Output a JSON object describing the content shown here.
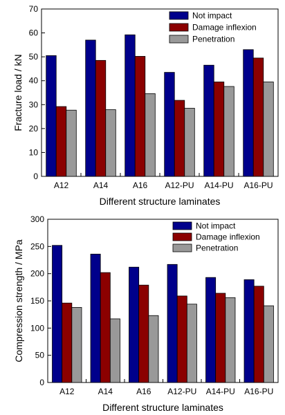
{
  "chart_data": [
    {
      "type": "bar",
      "xlabel": "Different structure laminates",
      "ylabel": "Fracture load / kN",
      "ylim": [
        0,
        70
      ],
      "yticks": [
        0,
        10,
        20,
        30,
        40,
        50,
        60,
        70
      ],
      "categories": [
        "A12",
        "A14",
        "A16",
        "A12-PU",
        "A14-PU",
        "A16-PU"
      ],
      "series": [
        {
          "name": "Not impact",
          "color": "#00008b",
          "values": [
            50.5,
            57,
            59.2,
            43.5,
            46.5,
            53
          ]
        },
        {
          "name": "Damage inflexion",
          "color": "#8b0000",
          "values": [
            29.2,
            48.5,
            50.2,
            31.8,
            39.5,
            49.5
          ]
        },
        {
          "name": "Penetration",
          "color": "#999999",
          "values": [
            27.7,
            27.9,
            34.6,
            28.5,
            37.6,
            39.5
          ]
        }
      ],
      "legend_position": "top-right",
      "grid": false
    },
    {
      "type": "bar",
      "xlabel": "Different structure laminates",
      "ylabel": "Compression strength / MPa",
      "ylim": [
        0,
        300
      ],
      "yticks": [
        0,
        50,
        100,
        150,
        200,
        250,
        300
      ],
      "categories": [
        "A12",
        "A14",
        "A16",
        "A12-PU",
        "A14-PU",
        "A16-PU"
      ],
      "series": [
        {
          "name": "Not impact",
          "color": "#00008b",
          "values": [
            252,
            236,
            212,
            217,
            193,
            189
          ]
        },
        {
          "name": "Damage inflexion",
          "color": "#8b0000",
          "values": [
            146,
            202,
            179,
            159,
            164,
            177
          ]
        },
        {
          "name": "Penetration",
          "color": "#999999",
          "values": [
            138,
            117,
            123,
            144,
            156,
            141
          ]
        }
      ],
      "legend_position": "top-right",
      "grid": false
    }
  ]
}
